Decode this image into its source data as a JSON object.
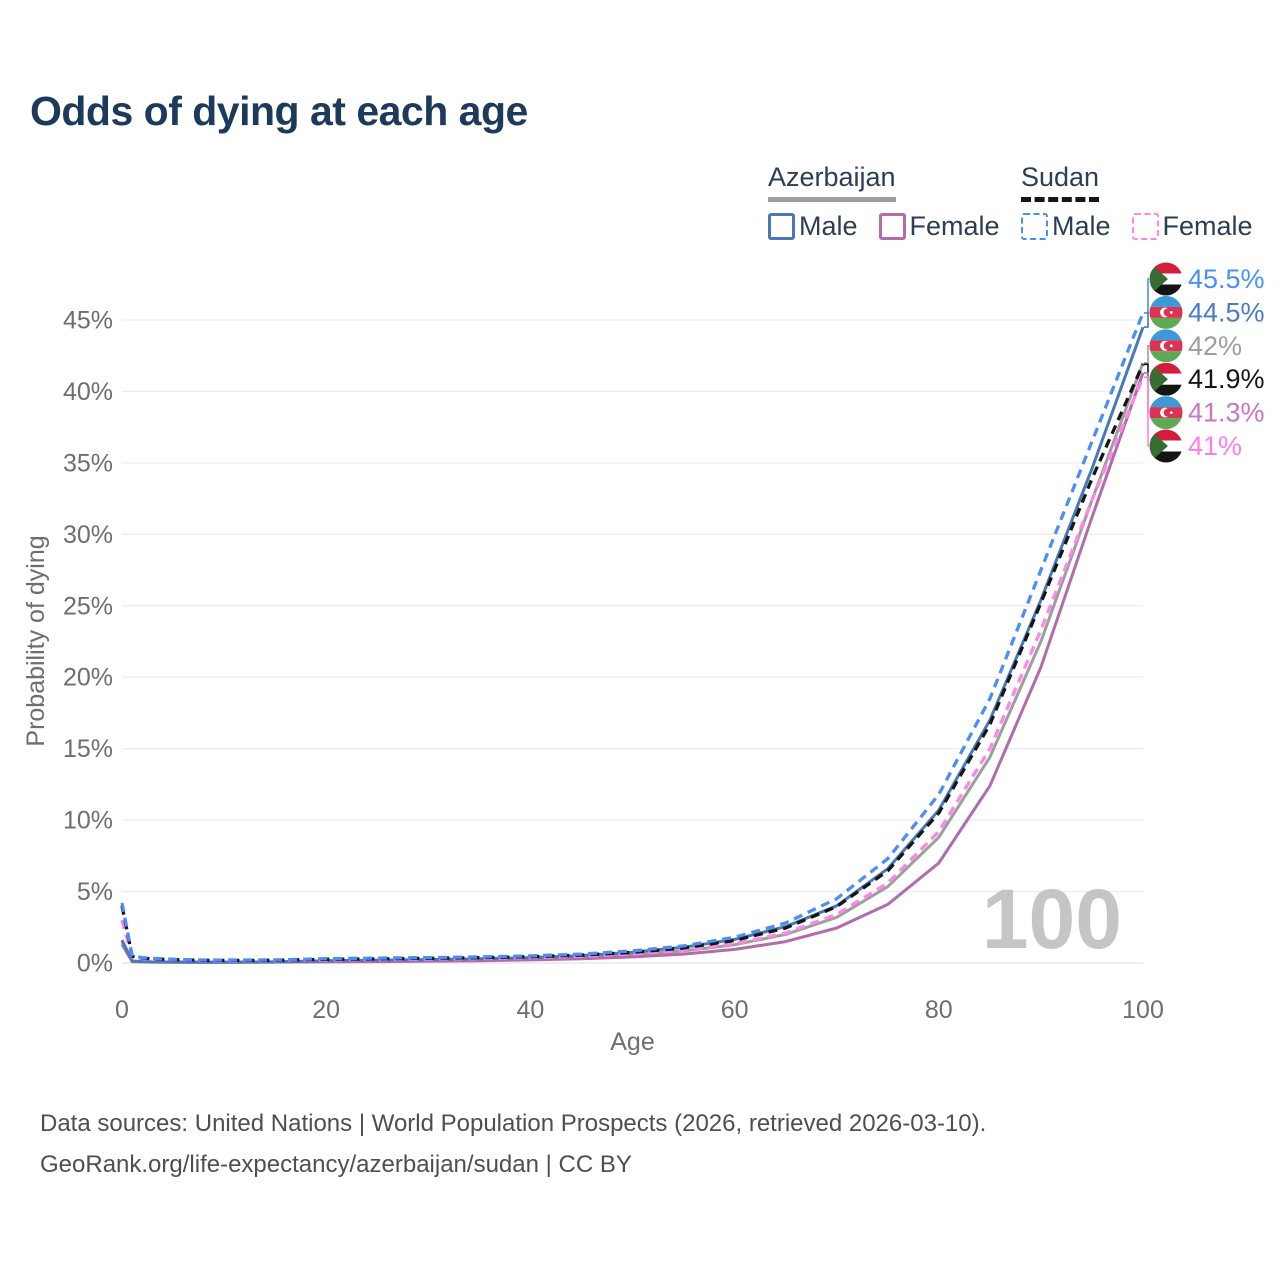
{
  "title": "Odds of dying at each age",
  "legend": {
    "groups": [
      {
        "label": "Azerbaijan",
        "line_style": "solid",
        "underline_color": "#9e9e9e",
        "items": [
          {
            "label": "Male",
            "color": "#4878ba",
            "dashed": false
          },
          {
            "label": "Female",
            "color": "#b06cab",
            "dashed": false
          }
        ]
      },
      {
        "label": "Sudan",
        "line_style": "dashed",
        "underline_color": "#161616",
        "items": [
          {
            "label": "Male",
            "color": "#4a8ff5",
            "dashed": true
          },
          {
            "label": "Female",
            "color": "#ff85e8",
            "dashed": true
          }
        ]
      }
    ]
  },
  "chart_data": {
    "type": "line",
    "title": "Odds of dying at each age",
    "xlabel": "Age",
    "ylabel": "Probability of dying",
    "x_ticks": [
      0,
      20,
      40,
      60,
      80,
      100
    ],
    "x_tick_suffix": "",
    "y_ticks_percent": [
      0,
      5,
      10,
      15,
      20,
      25,
      30,
      35,
      40,
      45
    ],
    "y_tick_suffix": "%",
    "xlim": [
      0,
      100
    ],
    "ylim_percent": [
      0,
      47.5
    ],
    "grid": "horizontal-only",
    "age_counter": "100",
    "x": [
      0,
      1,
      2,
      3,
      5,
      8,
      10,
      15,
      20,
      25,
      30,
      35,
      40,
      45,
      50,
      55,
      60,
      65,
      70,
      75,
      80,
      85,
      90,
      95,
      100
    ],
    "series": [
      {
        "id": "sudan-male",
        "name": "Sudan Male",
        "country": "Sudan",
        "sex": "Male",
        "flag": "sudan",
        "color": "#4a8ff5",
        "label_color": "#4a8ff5",
        "dashed": true,
        "end_label": "45.5%",
        "end_value": 45.5,
        "values": [
          4.2,
          0.5,
          0.38,
          0.32,
          0.26,
          0.21,
          0.2,
          0.22,
          0.3,
          0.34,
          0.38,
          0.43,
          0.5,
          0.62,
          0.85,
          1.2,
          1.8,
          2.8,
          4.5,
          7.3,
          11.8,
          18.5,
          27.5,
          36.5,
          45.5
        ]
      },
      {
        "id": "azerbaijan-male",
        "name": "Azerbaijan Male",
        "country": "Azerbaijan",
        "sex": "Male",
        "flag": "azerbaijan",
        "color": "#4878ba",
        "label_color": "#4a7cc4",
        "dashed": false,
        "end_label": "44.5%",
        "end_value": 44.5,
        "values": [
          1.6,
          0.14,
          0.1,
          0.08,
          0.07,
          0.06,
          0.06,
          0.08,
          0.16,
          0.2,
          0.24,
          0.3,
          0.38,
          0.52,
          0.75,
          1.1,
          1.65,
          2.55,
          4.0,
          6.6,
          10.7,
          17.0,
          25.4,
          34.6,
          44.5
        ]
      },
      {
        "id": "azerbaijan-both",
        "name": "Azerbaijan Both sexes",
        "country": "Azerbaijan",
        "sex": "Both",
        "flag": "azerbaijan",
        "color": "#9e9e9e",
        "label_color": "#9e9e9e",
        "dashed": false,
        "end_label": "42%",
        "end_value": 42,
        "values": [
          1.5,
          0.12,
          0.09,
          0.07,
          0.06,
          0.05,
          0.05,
          0.07,
          0.12,
          0.15,
          0.18,
          0.23,
          0.3,
          0.41,
          0.58,
          0.85,
          1.28,
          2.0,
          3.2,
          5.35,
          8.8,
          14.4,
          22.5,
          32.4,
          42.0
        ]
      },
      {
        "id": "sudan-both",
        "name": "Sudan Both sexes",
        "country": "Sudan",
        "sex": "Both",
        "flag": "sudan",
        "color": "#161616",
        "label_color": "#161616",
        "dashed": true,
        "end_label": "41.9%",
        "end_value": 41.9,
        "values": [
          4.0,
          0.46,
          0.35,
          0.29,
          0.24,
          0.19,
          0.18,
          0.19,
          0.26,
          0.29,
          0.33,
          0.37,
          0.44,
          0.55,
          0.74,
          1.05,
          1.58,
          2.45,
          3.95,
          6.45,
          10.5,
          16.7,
          25.2,
          33.9,
          41.9
        ]
      },
      {
        "id": "azerbaijan-female",
        "name": "Azerbaijan Female",
        "country": "Azerbaijan",
        "sex": "Female",
        "flag": "azerbaijan",
        "color": "#b06cab",
        "label_color": "#c678be",
        "dashed": false,
        "end_label": "41.3%",
        "end_value": 41.3,
        "values": [
          1.3,
          0.1,
          0.08,
          0.06,
          0.05,
          0.04,
          0.04,
          0.06,
          0.08,
          0.1,
          0.13,
          0.16,
          0.22,
          0.3,
          0.43,
          0.62,
          0.95,
          1.5,
          2.45,
          4.1,
          7.0,
          12.4,
          20.7,
          31.2,
          41.3
        ]
      },
      {
        "id": "sudan-female",
        "name": "Sudan Female",
        "country": "Sudan",
        "sex": "Female",
        "flag": "sudan",
        "color": "#ff85e8",
        "label_color": "#ff7de8",
        "dashed": true,
        "end_label": "41%",
        "end_value": 41,
        "values": [
          3.0,
          0.42,
          0.32,
          0.27,
          0.22,
          0.17,
          0.16,
          0.17,
          0.21,
          0.24,
          0.27,
          0.31,
          0.38,
          0.47,
          0.63,
          0.9,
          1.35,
          2.1,
          3.4,
          5.6,
          9.2,
          15.0,
          23.3,
          32.4,
          41.0
        ]
      }
    ]
  },
  "footer": {
    "line1": "Data sources: United Nations | World Population Prospects (2026, retrieved 2026-03-10).",
    "line2": "GeoRank.org/life-expectancy/azerbaijan/sudan | CC BY"
  },
  "colors": {
    "title": "#1b3a5c",
    "legend_text": "#2c3d55",
    "axis_text": "#6e6e6e",
    "grid": "#ededed",
    "watermark": "#c5c5c5",
    "footer_text": "#4f4f4f",
    "azerbaijan_underline": "#9e9e9e",
    "sudan_underline": "#161616"
  }
}
